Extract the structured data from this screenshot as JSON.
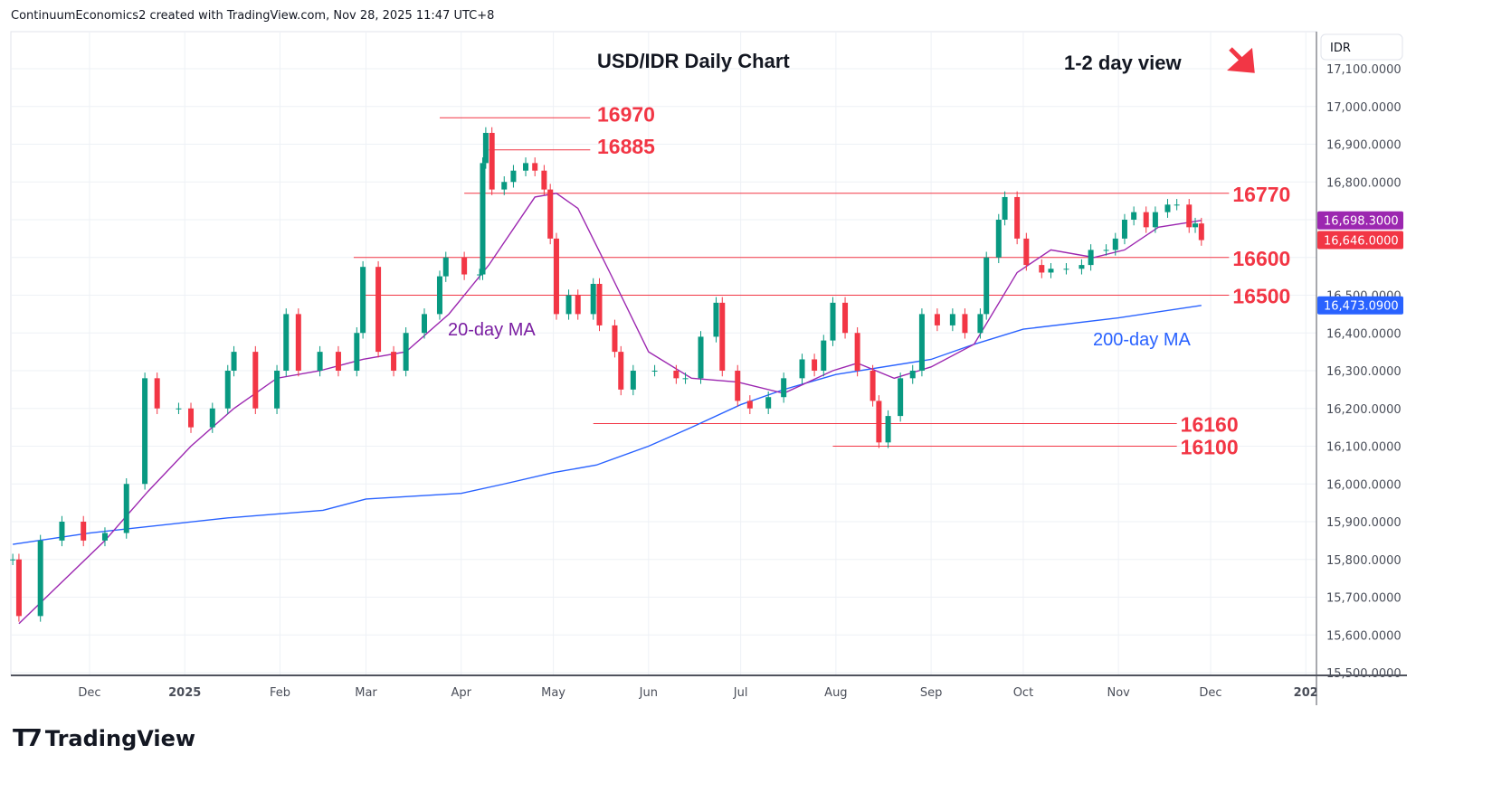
{
  "header": {
    "attribution": "ContinuumEconomics2 created with TradingView.com, Nov 28, 2025 11:47 UTC+8"
  },
  "logo": {
    "text": "TradingView"
  },
  "chart_data": {
    "type": "candlestick",
    "title": "USD/IDR Daily Chart",
    "subtitle": "1-2 day view",
    "view_arrow": "down-right-arrow",
    "currency": "IDR",
    "ylim": [
      15500,
      17100
    ],
    "y_ticks": [
      17100,
      17000,
      16900,
      16800,
      16700,
      16600,
      16500,
      16400,
      16300,
      16200,
      16100,
      16000,
      15900,
      15800,
      15700,
      15600,
      15500
    ],
    "y_tick_labels": [
      "17,100.0000",
      "17,000.0000",
      "16,900.0000",
      "16,800.0000",
      "",
      "",
      "16,500.0000",
      "16,400.0000",
      "16,300.0000",
      "16,200.0000",
      "16,100.0000",
      "16,000.0000",
      "15,900.0000",
      "15,800.0000",
      "15,700.0000",
      "15,600.0000",
      "15,500.0000"
    ],
    "x_ticks": [
      {
        "date": "2024-12-01",
        "label": "Dec"
      },
      {
        "date": "2025-01-01",
        "label": "2025"
      },
      {
        "date": "2025-02-01",
        "label": "Feb"
      },
      {
        "date": "2025-03-01",
        "label": "Mar"
      },
      {
        "date": "2025-04-01",
        "label": "Apr"
      },
      {
        "date": "2025-05-01",
        "label": "May"
      },
      {
        "date": "2025-06-01",
        "label": "Jun"
      },
      {
        "date": "2025-07-01",
        "label": "Jul"
      },
      {
        "date": "2025-08-01",
        "label": "Aug"
      },
      {
        "date": "2025-09-01",
        "label": "Sep"
      },
      {
        "date": "2025-10-01",
        "label": "Oct"
      },
      {
        "date": "2025-11-01",
        "label": "Nov"
      },
      {
        "date": "2025-12-01",
        "label": "Dec"
      },
      {
        "date": "2026-01-01",
        "label": "202"
      }
    ],
    "grid": true,
    "colors": {
      "up": "#089981",
      "down": "#f23645",
      "ma20": "#9c27b0",
      "ma200": "#2962ff",
      "levels": "#f23645"
    },
    "closes": [
      [
        "2024-11-06",
        15800
      ],
      [
        "2024-11-08",
        15650
      ],
      [
        "2024-11-15",
        15850
      ],
      [
        "2024-11-22",
        15900
      ],
      [
        "2024-11-29",
        15850
      ],
      [
        "2024-12-06",
        15870
      ],
      [
        "2024-12-13",
        16000
      ],
      [
        "2024-12-19",
        16280
      ],
      [
        "2024-12-23",
        16200
      ],
      [
        "2024-12-30",
        16200
      ],
      [
        "2025-01-03",
        16150
      ],
      [
        "2025-01-10",
        16200
      ],
      [
        "2025-01-15",
        16300
      ],
      [
        "2025-01-17",
        16350
      ],
      [
        "2025-01-24",
        16200
      ],
      [
        "2025-01-31",
        16300
      ],
      [
        "2025-02-03",
        16450
      ],
      [
        "2025-02-07",
        16300
      ],
      [
        "2025-02-14",
        16350
      ],
      [
        "2025-02-20",
        16300
      ],
      [
        "2025-02-26",
        16400
      ],
      [
        "2025-02-28",
        16575
      ],
      [
        "2025-03-05",
        16350
      ],
      [
        "2025-03-10",
        16300
      ],
      [
        "2025-03-14",
        16400
      ],
      [
        "2025-03-20",
        16450
      ],
      [
        "2025-03-25",
        16550
      ],
      [
        "2025-03-27",
        16600
      ],
      [
        "2025-04-02",
        16555
      ],
      [
        "2025-04-07",
        16555
      ],
      [
        "2025-04-08",
        16850
      ],
      [
        "2025-04-09",
        16930
      ],
      [
        "2025-04-11",
        16780
      ],
      [
        "2025-04-15",
        16800
      ],
      [
        "2025-04-18",
        16830
      ],
      [
        "2025-04-22",
        16850
      ],
      [
        "2025-04-25",
        16830
      ],
      [
        "2025-04-28",
        16780
      ],
      [
        "2025-04-30",
        16650
      ],
      [
        "2025-05-02",
        16450
      ],
      [
        "2025-05-06",
        16500
      ],
      [
        "2025-05-09",
        16450
      ],
      [
        "2025-05-14",
        16530
      ],
      [
        "2025-05-16",
        16420
      ],
      [
        "2025-05-21",
        16350
      ],
      [
        "2025-05-23",
        16250
      ],
      [
        "2025-05-27",
        16300
      ],
      [
        "2025-06-03",
        16300
      ],
      [
        "2025-06-10",
        16280
      ],
      [
        "2025-06-13",
        16280
      ],
      [
        "2025-06-18",
        16390
      ],
      [
        "2025-06-23",
        16480
      ],
      [
        "2025-06-25",
        16300
      ],
      [
        "2025-06-30",
        16220
      ],
      [
        "2025-07-04",
        16200
      ],
      [
        "2025-07-10",
        16230
      ],
      [
        "2025-07-15",
        16280
      ],
      [
        "2025-07-21",
        16330
      ],
      [
        "2025-07-25",
        16300
      ],
      [
        "2025-07-28",
        16380
      ],
      [
        "2025-07-31",
        16480
      ],
      [
        "2025-08-04",
        16400
      ],
      [
        "2025-08-08",
        16300
      ],
      [
        "2025-08-13",
        16220
      ],
      [
        "2025-08-15",
        16110
      ],
      [
        "2025-08-18",
        16180
      ],
      [
        "2025-08-22",
        16280
      ],
      [
        "2025-08-26",
        16300
      ],
      [
        "2025-08-29",
        16450
      ],
      [
        "2025-09-03",
        16420
      ],
      [
        "2025-09-08",
        16450
      ],
      [
        "2025-09-12",
        16400
      ],
      [
        "2025-09-17",
        16450
      ],
      [
        "2025-09-19",
        16600
      ],
      [
        "2025-09-23",
        16700
      ],
      [
        "2025-09-25",
        16760
      ],
      [
        "2025-09-29",
        16650
      ],
      [
        "2025-10-02",
        16580
      ],
      [
        "2025-10-07",
        16560
      ],
      [
        "2025-10-10",
        16570
      ],
      [
        "2025-10-15",
        16570
      ],
      [
        "2025-10-20",
        16580
      ],
      [
        "2025-10-23",
        16620
      ],
      [
        "2025-10-28",
        16620
      ],
      [
        "2025-10-31",
        16650
      ],
      [
        "2025-11-03",
        16700
      ],
      [
        "2025-11-06",
        16720
      ],
      [
        "2025-11-10",
        16680
      ],
      [
        "2025-11-13",
        16720
      ],
      [
        "2025-11-17",
        16740
      ],
      [
        "2025-11-20",
        16740
      ],
      [
        "2025-11-24",
        16680
      ],
      [
        "2025-11-26",
        16690
      ],
      [
        "2025-11-28",
        16646
      ]
    ],
    "ma20": {
      "label": "20-day MA",
      "last": "16,698.3000",
      "points": [
        [
          "2024-11-08",
          15630
        ],
        [
          "2024-11-22",
          15740
        ],
        [
          "2024-12-06",
          15850
        ],
        [
          "2024-12-20",
          15980
        ],
        [
          "2025-01-03",
          16100
        ],
        [
          "2025-01-17",
          16200
        ],
        [
          "2025-01-31",
          16280
        ],
        [
          "2025-02-14",
          16300
        ],
        [
          "2025-02-28",
          16330
        ],
        [
          "2025-03-14",
          16350
        ],
        [
          "2025-03-28",
          16450
        ],
        [
          "2025-04-10",
          16580
        ],
        [
          "2025-04-25",
          16760
        ],
        [
          "2025-05-02",
          16770
        ],
        [
          "2025-05-09",
          16730
        ],
        [
          "2025-05-20",
          16550
        ],
        [
          "2025-06-01",
          16350
        ],
        [
          "2025-06-15",
          16280
        ],
        [
          "2025-06-30",
          16270
        ],
        [
          "2025-07-15",
          16240
        ],
        [
          "2025-07-31",
          16300
        ],
        [
          "2025-08-08",
          16320
        ],
        [
          "2025-08-20",
          16280
        ],
        [
          "2025-09-01",
          16310
        ],
        [
          "2025-09-15",
          16370
        ],
        [
          "2025-09-29",
          16560
        ],
        [
          "2025-10-10",
          16620
        ],
        [
          "2025-10-24",
          16600
        ],
        [
          "2025-11-03",
          16620
        ],
        [
          "2025-11-14",
          16680
        ],
        [
          "2025-11-28",
          16698
        ]
      ]
    },
    "ma200": {
      "label": "200-day MA",
      "last": "16,473.0900",
      "points": [
        [
          "2024-11-06",
          15840
        ],
        [
          "2024-12-01",
          15870
        ],
        [
          "2025-01-15",
          15910
        ],
        [
          "2025-02-15",
          15930
        ],
        [
          "2025-03-01",
          15960
        ],
        [
          "2025-04-01",
          15975
        ],
        [
          "2025-04-15",
          16000
        ],
        [
          "2025-05-01",
          16030
        ],
        [
          "2025-05-15",
          16050
        ],
        [
          "2025-06-01",
          16100
        ],
        [
          "2025-06-15",
          16150
        ],
        [
          "2025-07-01",
          16210
        ],
        [
          "2025-07-15",
          16250
        ],
        [
          "2025-08-01",
          16290
        ],
        [
          "2025-09-01",
          16330
        ],
        [
          "2025-09-15",
          16370
        ],
        [
          "2025-10-01",
          16410
        ],
        [
          "2025-11-01",
          16440
        ],
        [
          "2025-11-28",
          16473
        ]
      ]
    },
    "last_price": {
      "value": 16646,
      "label": "16,646.0000"
    },
    "levels": [
      {
        "price": 16970,
        "label": "16970",
        "from": "2025-03-25",
        "to": "2025-05-13"
      },
      {
        "price": 16885,
        "label": "16885",
        "from": "2025-04-10",
        "to": "2025-05-13"
      },
      {
        "price": 16770,
        "label": "16770",
        "from": "2025-04-02",
        "to": "2025-12-07"
      },
      {
        "price": 16600,
        "label": "16600",
        "from": "2025-02-25",
        "to": "2025-12-07"
      },
      {
        "price": 16500,
        "label": "16500",
        "from": "2025-02-28",
        "to": "2025-12-07"
      },
      {
        "price": 16160,
        "label": "16160",
        "from": "2025-05-14",
        "to": "2025-11-20"
      },
      {
        "price": 16100,
        "label": "16100",
        "from": "2025-07-31",
        "to": "2025-11-20"
      }
    ]
  }
}
